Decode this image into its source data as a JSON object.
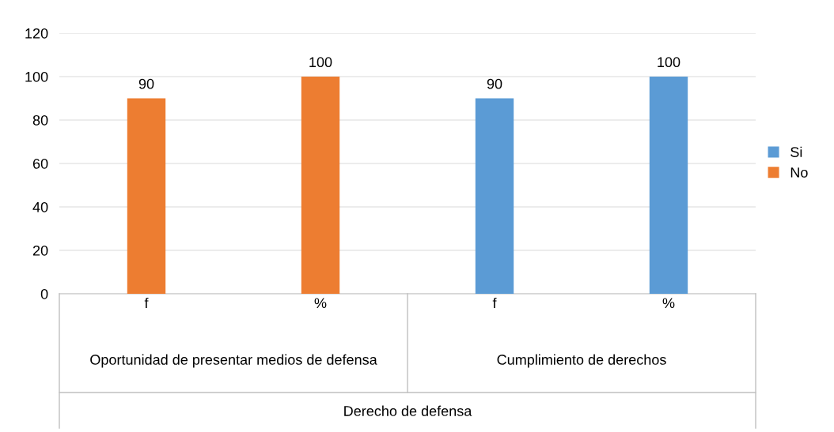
{
  "chart_data": {
    "type": "bar",
    "categories": [
      "f",
      "%",
      "f",
      "%"
    ],
    "series": [
      {
        "name": "Si",
        "color": "#5b9bd5",
        "values": [
          null,
          null,
          90,
          100
        ]
      },
      {
        "name": "No",
        "color": "#ed7d31",
        "values": [
          90,
          100,
          null,
          null
        ]
      }
    ],
    "ylim": [
      0,
      120
    ],
    "yticks": [
      0,
      20,
      40,
      60,
      80,
      100,
      120
    ],
    "grid": "y",
    "legend": "right",
    "data_labels": true,
    "annotations": [
      "Oportunidad de presentar medios de defensa",
      "Cumplimiento de derechos",
      "Derecho de defensa"
    ]
  }
}
